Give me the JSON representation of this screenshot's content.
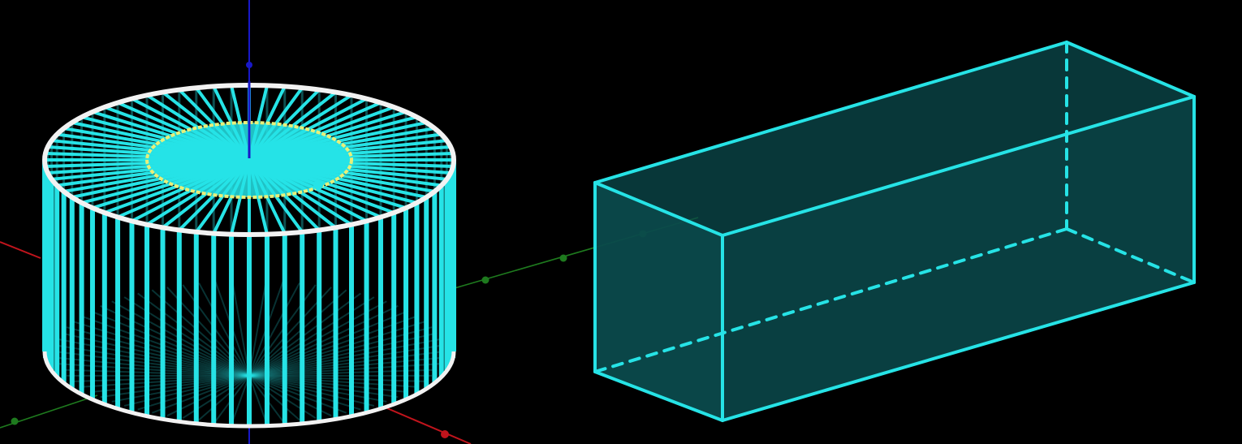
{
  "scene": {
    "background": "#000000",
    "colors": {
      "x_axis": "#c0141c",
      "y_axis": "#1e7a1e",
      "z_axis": "#1818c8",
      "cyan": "#26e3e6",
      "cyan_fill": "#0b4a4c",
      "white_rim": "#f2f2f2",
      "yellow": "#e8f07a"
    },
    "objects": [
      {
        "id": "cylinder",
        "kind": "wireframe-cylinder",
        "spokes": 72
      },
      {
        "id": "prism",
        "kind": "rectangular-prism",
        "edges_visible": 9,
        "edges_hidden": 3
      }
    ],
    "axes": [
      "x",
      "y",
      "z"
    ]
  }
}
